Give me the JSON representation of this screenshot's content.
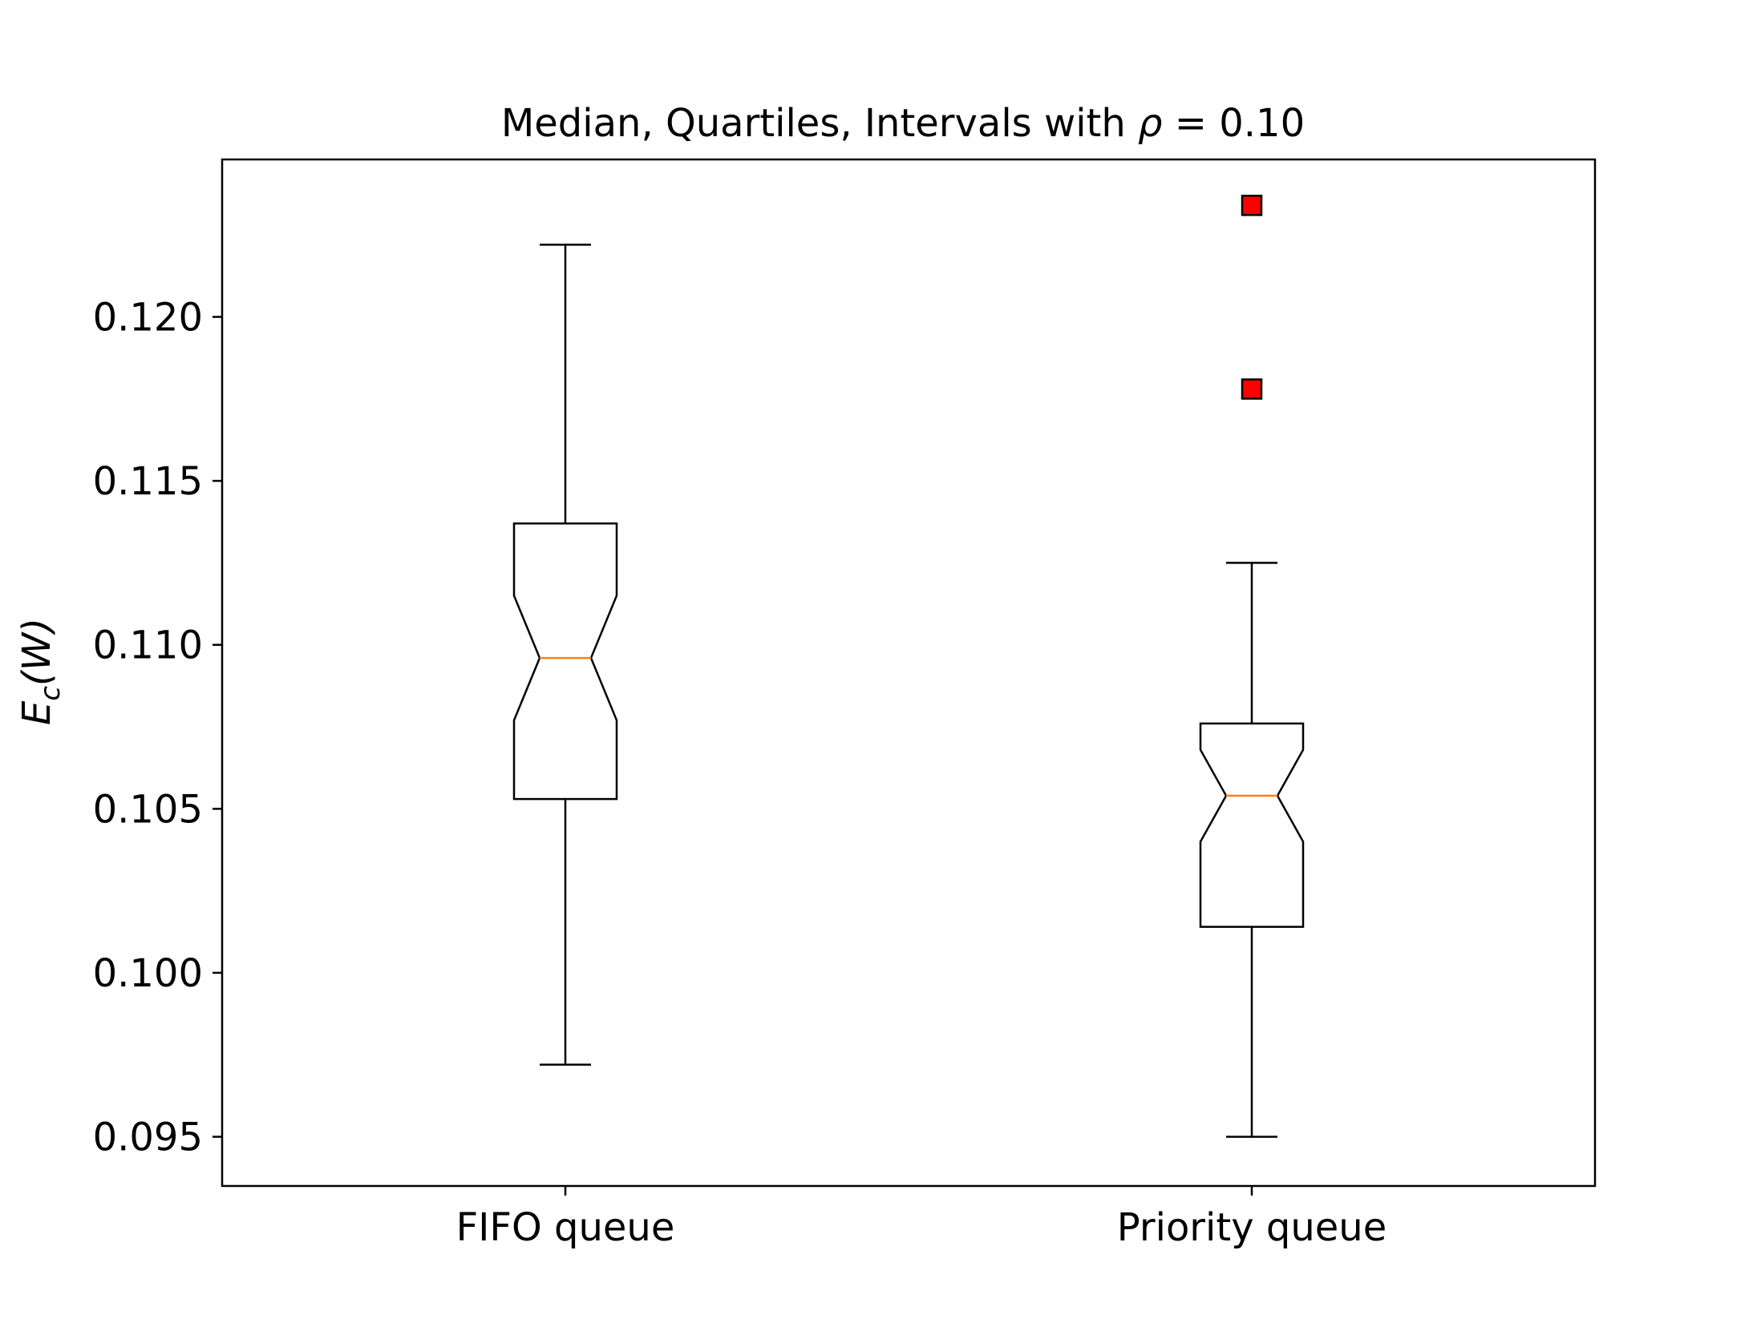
{
  "chart_data": {
    "type": "box",
    "title": "Median, Quartiles, Intervals with ",
    "title_math_symbol": "ρ",
    "title_math_rest": " = 0.10",
    "ylabel_main": "E",
    "ylabel_sub": "c",
    "ylabel_rest": "(W)",
    "xlabel": "",
    "ylim": [
      0.0935,
      0.1248
    ],
    "yticks": [
      0.095,
      0.1,
      0.105,
      0.11,
      0.115,
      0.12
    ],
    "ytick_labels": [
      "0.095",
      "0.100",
      "0.105",
      "0.110",
      "0.115",
      "0.120"
    ],
    "categories": [
      "FIFO queue",
      "Priority queue"
    ],
    "boxes": [
      {
        "category": "FIFO queue",
        "whisker_low": 0.0972,
        "q1": 0.1053,
        "median": 0.1096,
        "q3": 0.1137,
        "whisker_high": 0.1222,
        "notch_low": 0.1077,
        "notch_high": 0.1115,
        "outliers": []
      },
      {
        "category": "Priority queue",
        "whisker_low": 0.095,
        "q1": 0.1014,
        "median": 0.1054,
        "q3": 0.1076,
        "whisker_high": 0.1125,
        "notch_low": 0.104,
        "notch_high": 0.1068,
        "outliers": [
          0.1178,
          0.1234
        ]
      }
    ],
    "grid": false,
    "legend": "none",
    "colors": {
      "box": "#000000",
      "median": "#ff7f0e",
      "outlier_fill": "#ff0000",
      "outlier_edge": "#000000"
    }
  }
}
